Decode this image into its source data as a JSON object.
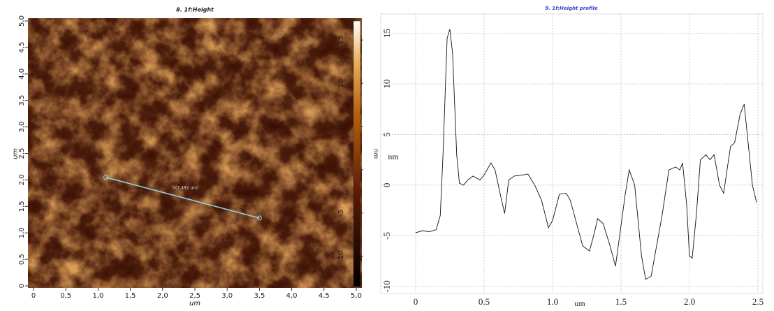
{
  "chart_data": [
    {
      "type": "image",
      "title": "8. 1f:Height",
      "x_label": "um",
      "y_label": "um",
      "colorbar_label": "nm",
      "xlim": [
        0,
        5
      ],
      "ylim": [
        0,
        5
      ],
      "xticks": [
        0,
        {
          "value": 0.5,
          "label": "0,5"
        },
        {
          "value": 1,
          "label": "1,0"
        },
        {
          "value": 1.5,
          "label": "1,5"
        },
        {
          "value": 2,
          "label": "2,0"
        },
        {
          "value": 2.5,
          "label": "2,5"
        },
        {
          "value": 3,
          "label": "3,0"
        },
        {
          "value": 3.5,
          "label": "3,5"
        },
        {
          "value": 4,
          "label": "4,0"
        },
        {
          "value": 4.5,
          "label": "4,5"
        },
        {
          "value": 5,
          "label": "5,0"
        }
      ],
      "yticks": [
        0,
        {
          "value": 0.5,
          "label": "0,5"
        },
        {
          "value": 1,
          "label": "1,0"
        },
        {
          "value": 1.5,
          "label": "1,5"
        },
        {
          "value": 2,
          "label": "2,0"
        },
        {
          "value": 2.5,
          "label": "2,5"
        },
        {
          "value": 3,
          "label": "3,0"
        },
        {
          "value": 3.5,
          "label": "3,5"
        },
        {
          "value": 4,
          "label": "4,0"
        },
        {
          "value": 4.5,
          "label": "4,5"
        },
        {
          "value": 5,
          "label": "5,0"
        }
      ],
      "clim": [
        -13.5,
        17.2
      ],
      "cticks": [
        -10,
        -5,
        0,
        5,
        10,
        15
      ],
      "profile_line": {
        "x": [
          1.12,
          3.5
        ],
        "y": [
          2.05,
          1.28
        ],
        "label": "D(2.492 um)",
        "color": "#8fd3e8"
      }
    },
    {
      "type": "line",
      "title": "9. 1f:Height profile",
      "x_label": "um",
      "y_label": "nm",
      "color": "#111",
      "xlim": [
        -0.255,
        2.536
      ],
      "ylim": [
        -10.7,
        16.9
      ],
      "xticks": [
        0,
        0.5,
        {
          "value": 1,
          "label": "1.0"
        },
        1.5,
        {
          "value": 2,
          "label": "2.0"
        },
        2.5
      ],
      "yticks": [
        -10,
        -5,
        0,
        5,
        10,
        15
      ],
      "grid": true,
      "x": [
        0,
        0.05,
        0.1,
        0.15,
        0.18,
        0.2,
        0.23,
        0.25,
        0.27,
        0.3,
        0.32,
        0.35,
        0.38,
        0.42,
        0.47,
        0.5,
        0.55,
        0.58,
        0.62,
        0.65,
        0.68,
        0.72,
        0.78,
        0.82,
        0.87,
        0.92,
        0.97,
        1.0,
        1.05,
        1.1,
        1.13,
        1.18,
        1.22,
        1.27,
        1.3,
        1.33,
        1.37,
        1.42,
        1.46,
        1.5,
        1.53,
        1.56,
        1.6,
        1.65,
        1.68,
        1.72,
        1.76,
        1.8,
        1.85,
        1.9,
        1.93,
        1.95,
        1.98,
        2.0,
        2.02,
        2.05,
        2.08,
        2.12,
        2.15,
        2.18,
        2.22,
        2.25,
        2.28,
        2.3,
        2.33,
        2.37,
        2.4,
        2.43,
        2.46,
        2.49
      ],
      "values": [
        -4.7,
        -4.5,
        -4.6,
        -4.4,
        -3,
        3,
        14.5,
        15.4,
        13,
        3,
        0.2,
        0,
        0.5,
        0.9,
        0.5,
        1,
        2.2,
        1.5,
        -1,
        -2.8,
        0.5,
        0.9,
        1,
        1.1,
        0,
        -1.5,
        -4.2,
        -3.5,
        -0.9,
        -0.8,
        -1.5,
        -4,
        -6,
        -6.5,
        -5,
        -3.3,
        -3.8,
        -6,
        -8,
        -4,
        -1,
        1.5,
        0,
        -7,
        -9.3,
        -9,
        -6,
        -3,
        1.5,
        1.8,
        1.5,
        2.2,
        -2,
        -7,
        -7.2,
        -3,
        2.5,
        3,
        2.5,
        3,
        0,
        -0.8,
        2,
        3.8,
        4.2,
        7,
        8,
        4,
        0,
        -1.7
      ]
    }
  ]
}
